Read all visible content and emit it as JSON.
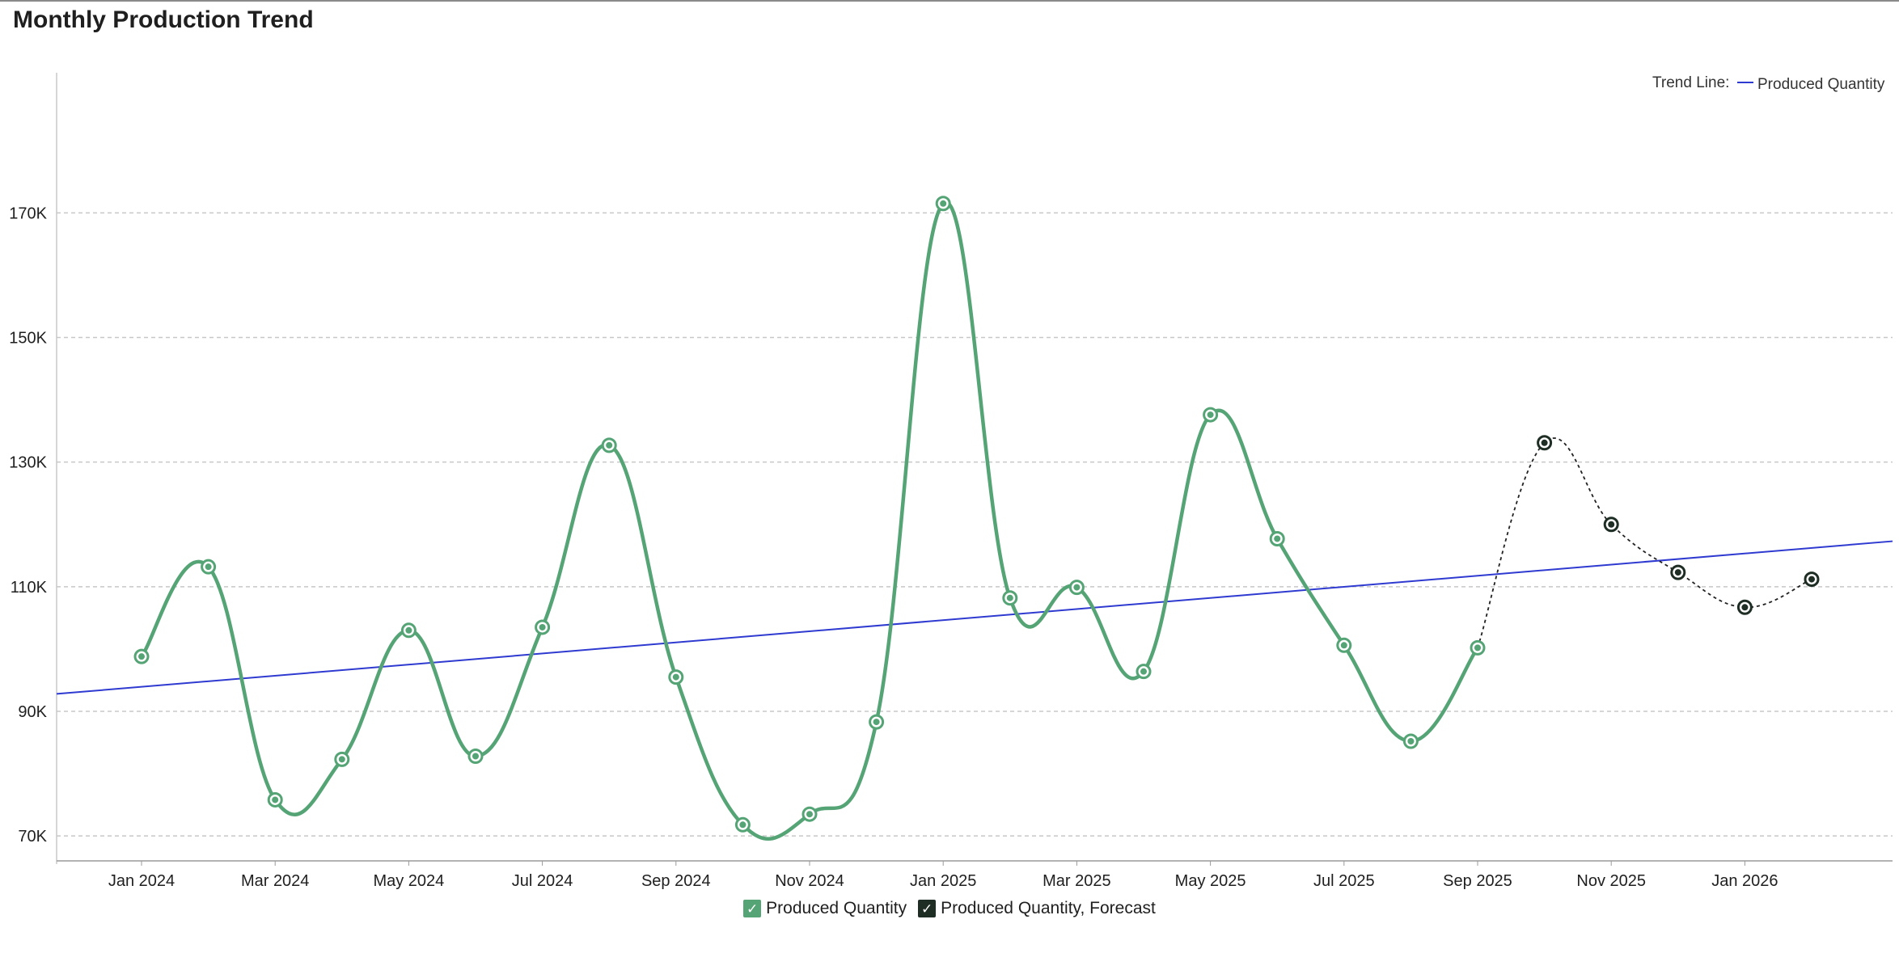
{
  "title": "Monthly Production Trend",
  "colors": {
    "actual": "#55A475",
    "forecast": "#1E2E25",
    "trend": "#2F3BD0",
    "grid": "#C8C8C8"
  },
  "legend": {
    "items": [
      {
        "label": "Produced Quantity",
        "check": "✓",
        "icon": "checkbox-checked-icon"
      },
      {
        "label": "Produced Quantity, Forecast",
        "check": "✓",
        "icon": "checkbox-checked-icon"
      }
    ],
    "trend_title": "Trend Line:",
    "trend_label": "Produced Quantity"
  },
  "chart_data": {
    "type": "line",
    "title": "Monthly Production Trend",
    "xlabel": "",
    "ylabel": "",
    "ylim": [
      66000,
      186000
    ],
    "yticks": [
      70000,
      90000,
      110000,
      130000,
      150000,
      170000
    ],
    "ytick_labels": [
      "70K",
      "90K",
      "110K",
      "130K",
      "150K",
      "170K"
    ],
    "x_tick_labels": [
      "Jan 2024",
      "Mar 2024",
      "May 2024",
      "Jul 2024",
      "Sep 2024",
      "Nov 2024",
      "Jan 2025",
      "Mar 2025",
      "May 2025",
      "Jul 2025",
      "Sep 2025",
      "Nov 2025",
      "Jan 2026"
    ],
    "categories": [
      "Jan 2024",
      "Feb 2024",
      "Mar 2024",
      "Apr 2024",
      "May 2024",
      "Jun 2024",
      "Jul 2024",
      "Aug 2024",
      "Sep 2024",
      "Oct 2024",
      "Nov 2024",
      "Dec 2024",
      "Jan 2025",
      "Feb 2025",
      "Mar 2025",
      "Apr 2025",
      "May 2025",
      "Jun 2025",
      "Jul 2025",
      "Aug 2025",
      "Sep 2025",
      "Oct 2025",
      "Nov 2025",
      "Dec 2025",
      "Jan 2026",
      "Feb 2026"
    ],
    "grid": true,
    "legend_position": "bottom",
    "series": [
      {
        "name": "Produced Quantity",
        "values": [
          98800,
          113200,
          75800,
          82300,
          103000,
          82800,
          103500,
          132700,
          95500,
          71800,
          73500,
          88300,
          171500,
          108200,
          109900,
          96400,
          137600,
          117700,
          100600,
          85200,
          100200,
          null,
          null,
          null,
          null,
          null
        ]
      },
      {
        "name": "Produced Quantity, Forecast",
        "values": [
          null,
          null,
          null,
          null,
          null,
          null,
          null,
          null,
          null,
          null,
          null,
          null,
          null,
          null,
          null,
          null,
          null,
          null,
          null,
          null,
          100200,
          133100,
          120000,
          112300,
          106700,
          111200
        ]
      }
    ],
    "trend_line": {
      "name": "Produced Quantity",
      "start": 92800,
      "end": 117300
    }
  }
}
